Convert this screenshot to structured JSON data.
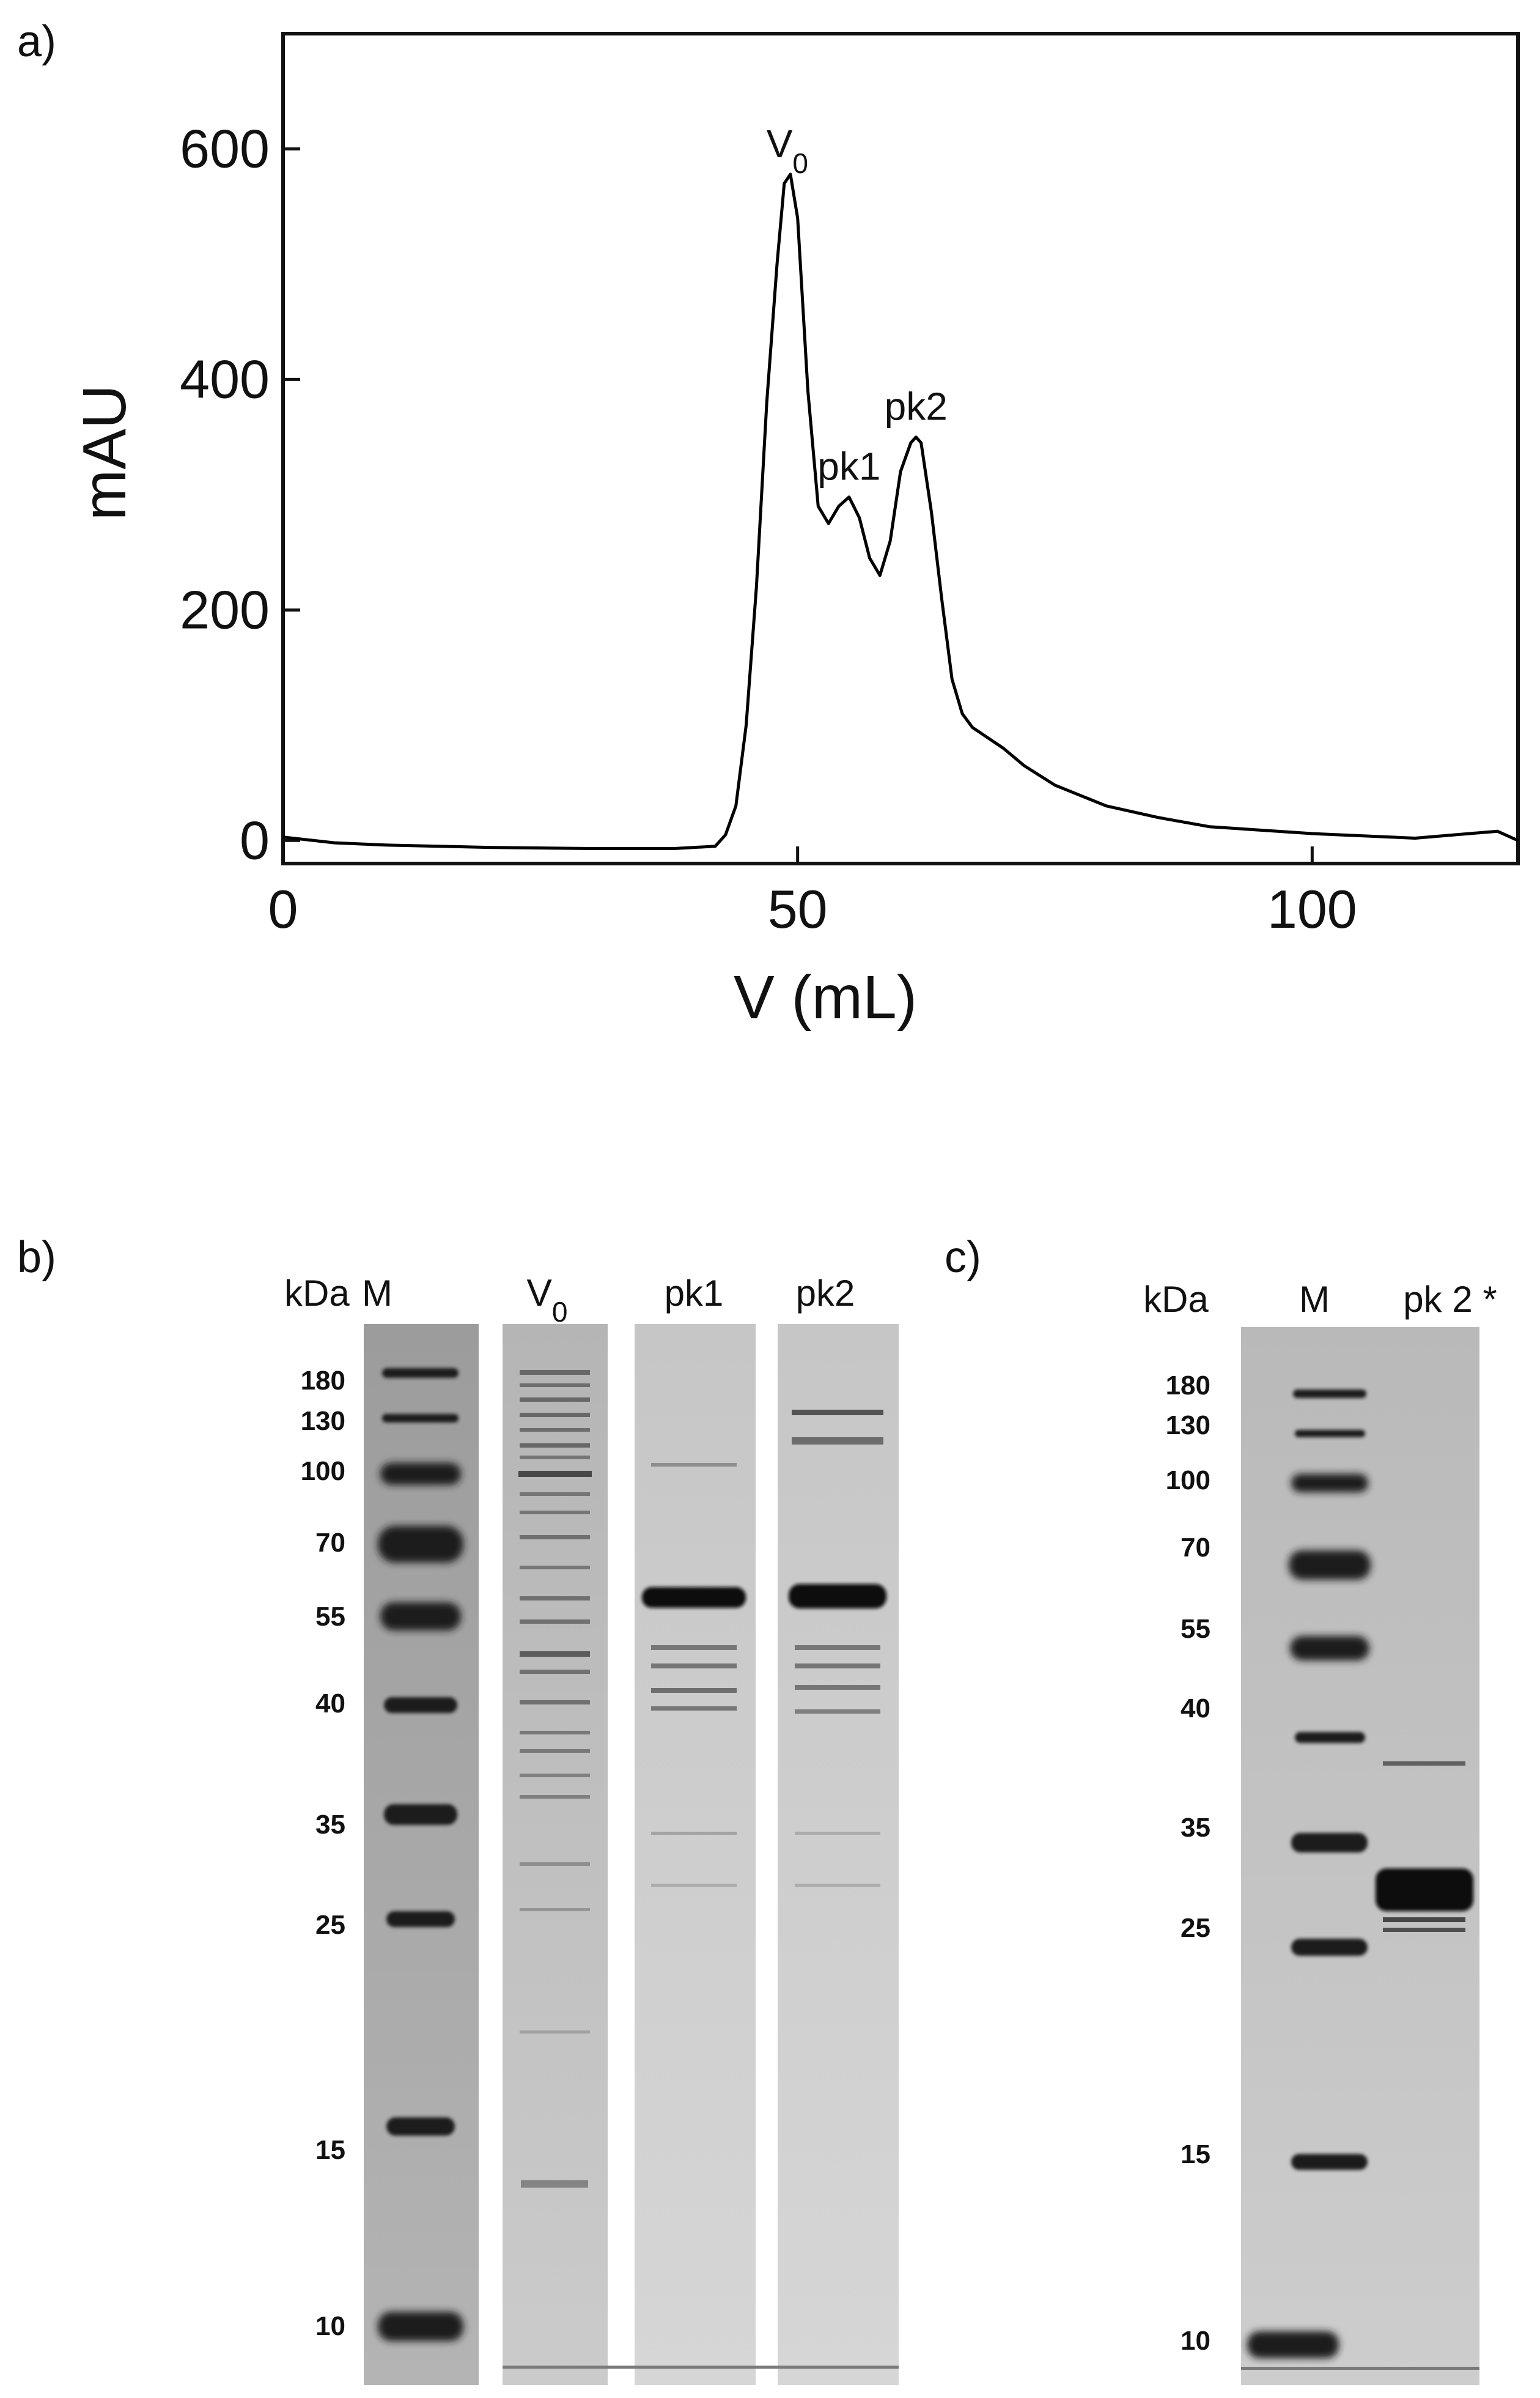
{
  "panel_labels": {
    "a": "a)",
    "b": "b)",
    "c": "c)"
  },
  "chart_data": {
    "type": "line",
    "xlabel": "V (mL)",
    "ylabel": "mAU",
    "xlim": [
      0,
      120
    ],
    "ylim": [
      -20,
      700
    ],
    "x_ticks": [
      0,
      50,
      100
    ],
    "y_ticks": [
      0,
      200,
      400,
      600
    ],
    "x_tick_labels": [
      "0",
      "50",
      "100"
    ],
    "y_tick_labels": [
      "0",
      "200",
      "400",
      "600"
    ],
    "grid": false,
    "series": [
      {
        "x": [
          0,
          5,
          10,
          20,
          30,
          38,
          42,
          43,
          44,
          45,
          46,
          47,
          48,
          48.7,
          49.3,
          50,
          51,
          52,
          53,
          54,
          55,
          56,
          57,
          58,
          59,
          60,
          61,
          61.5,
          62,
          63,
          64,
          65,
          66,
          67,
          68,
          70,
          72,
          75,
          80,
          85,
          90,
          100,
          110,
          118,
          120
        ],
        "y": [
          3,
          -2,
          -4,
          -6,
          -7,
          -7,
          -5,
          5,
          30,
          100,
          220,
          380,
          500,
          570,
          578,
          540,
          390,
          290,
          275,
          290,
          298,
          280,
          245,
          230,
          260,
          320,
          345,
          350,
          345,
          285,
          210,
          140,
          110,
          98,
          92,
          80,
          65,
          48,
          30,
          20,
          12,
          6,
          2,
          8,
          0
        ]
      }
    ],
    "annotations": [
      {
        "text": "V0",
        "text_main": "V",
        "text_sub": "0",
        "x": 49,
        "y": 578
      },
      {
        "text": "pk1",
        "x": 55,
        "y": 298
      },
      {
        "text": "pk2",
        "x": 61.5,
        "y": 350
      }
    ]
  },
  "gel_b": {
    "unit_label": "kDa",
    "lane_labels": {
      "M": "M",
      "V0_main": "V",
      "V0_sub": "0",
      "pk1": "pk1",
      "pk2": "pk2"
    },
    "marker_labels": [
      "180",
      "130",
      "100",
      "70",
      "55",
      "40",
      "35",
      "25",
      "15",
      "10"
    ]
  },
  "gel_c": {
    "unit_label": "kDa",
    "lane_labels": {
      "M": "M",
      "pk2star": "pk 2 *"
    },
    "marker_labels": [
      "180",
      "130",
      "100",
      "70",
      "55",
      "40",
      "35",
      "25",
      "15",
      "10"
    ]
  }
}
